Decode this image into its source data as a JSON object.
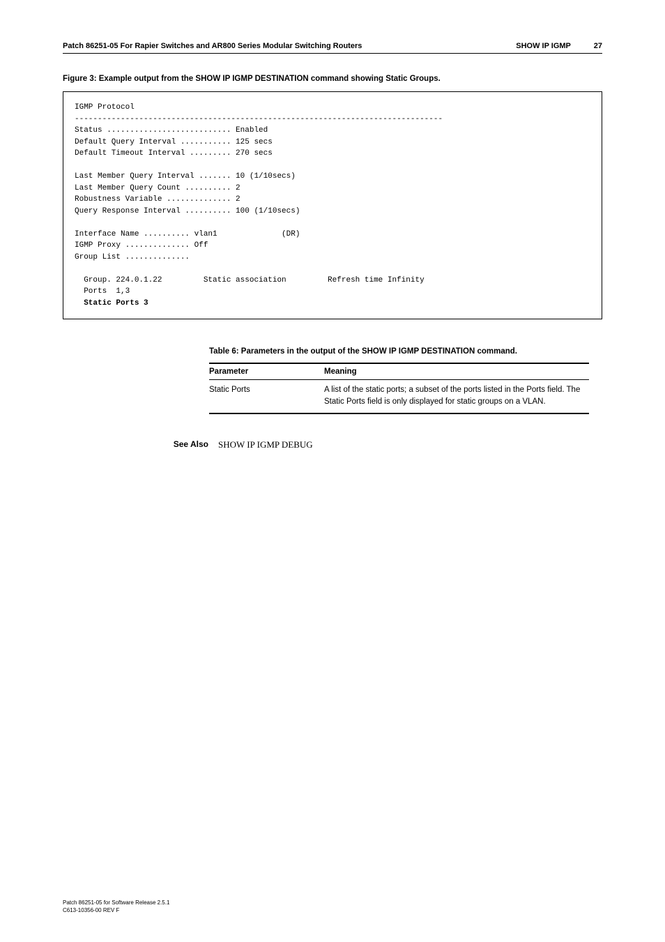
{
  "header": {
    "left": "Patch 86251-05 For Rapier Switches and AR800 Series Modular Switching Routers",
    "right_cmd": "SHOW IP IGMP",
    "page": "27"
  },
  "figure_caption": "Figure 3: Example output from the SHOW IP IGMP DESTINATION command showing Static Groups.",
  "code": {
    "line1": "IGMP Protocol",
    "line2": "--------------------------------------------------------------------------------",
    "line3": "Status ........................... Enabled",
    "line4": "Default Query Interval ........... 125 secs",
    "line5": "Default Timeout Interval ......... 270 secs",
    "line6": "",
    "line7": "Last Member Query Interval ....... 10 (1/10secs)",
    "line8": "Last Member Query Count .......... 2",
    "line9": "Robustness Variable .............. 2",
    "line10": "Query Response Interval .......... 100 (1/10secs)",
    "line11": "",
    "line12": "Interface Name .......... vlan1              (DR)",
    "line13": "IGMP Proxy .............. Off",
    "line14": "Group List ..............",
    "line15": "",
    "line16": "  Group. 224.0.1.22         Static association         Refresh time Infinity",
    "line17": "  Ports  1,3",
    "line18_bold": "  Static Ports 3"
  },
  "table": {
    "caption": "Table 6: Parameters in the output of the SHOW IP IGMP DESTINATION command.",
    "header_param": "Parameter",
    "header_meaning": "Meaning",
    "row1_param": "Static Ports",
    "row1_meaning": "A list of the static ports; a subset of the ports listed in the Ports field. The Static Ports field is only displayed for static groups on a VLAN."
  },
  "see_also": {
    "label": "See Also",
    "value": "SHOW IP IGMP DEBUG"
  },
  "footer": {
    "line1": "Patch 86251-05 for Software Release 2.5.1",
    "line2": "C613-10356-00 REV F"
  }
}
